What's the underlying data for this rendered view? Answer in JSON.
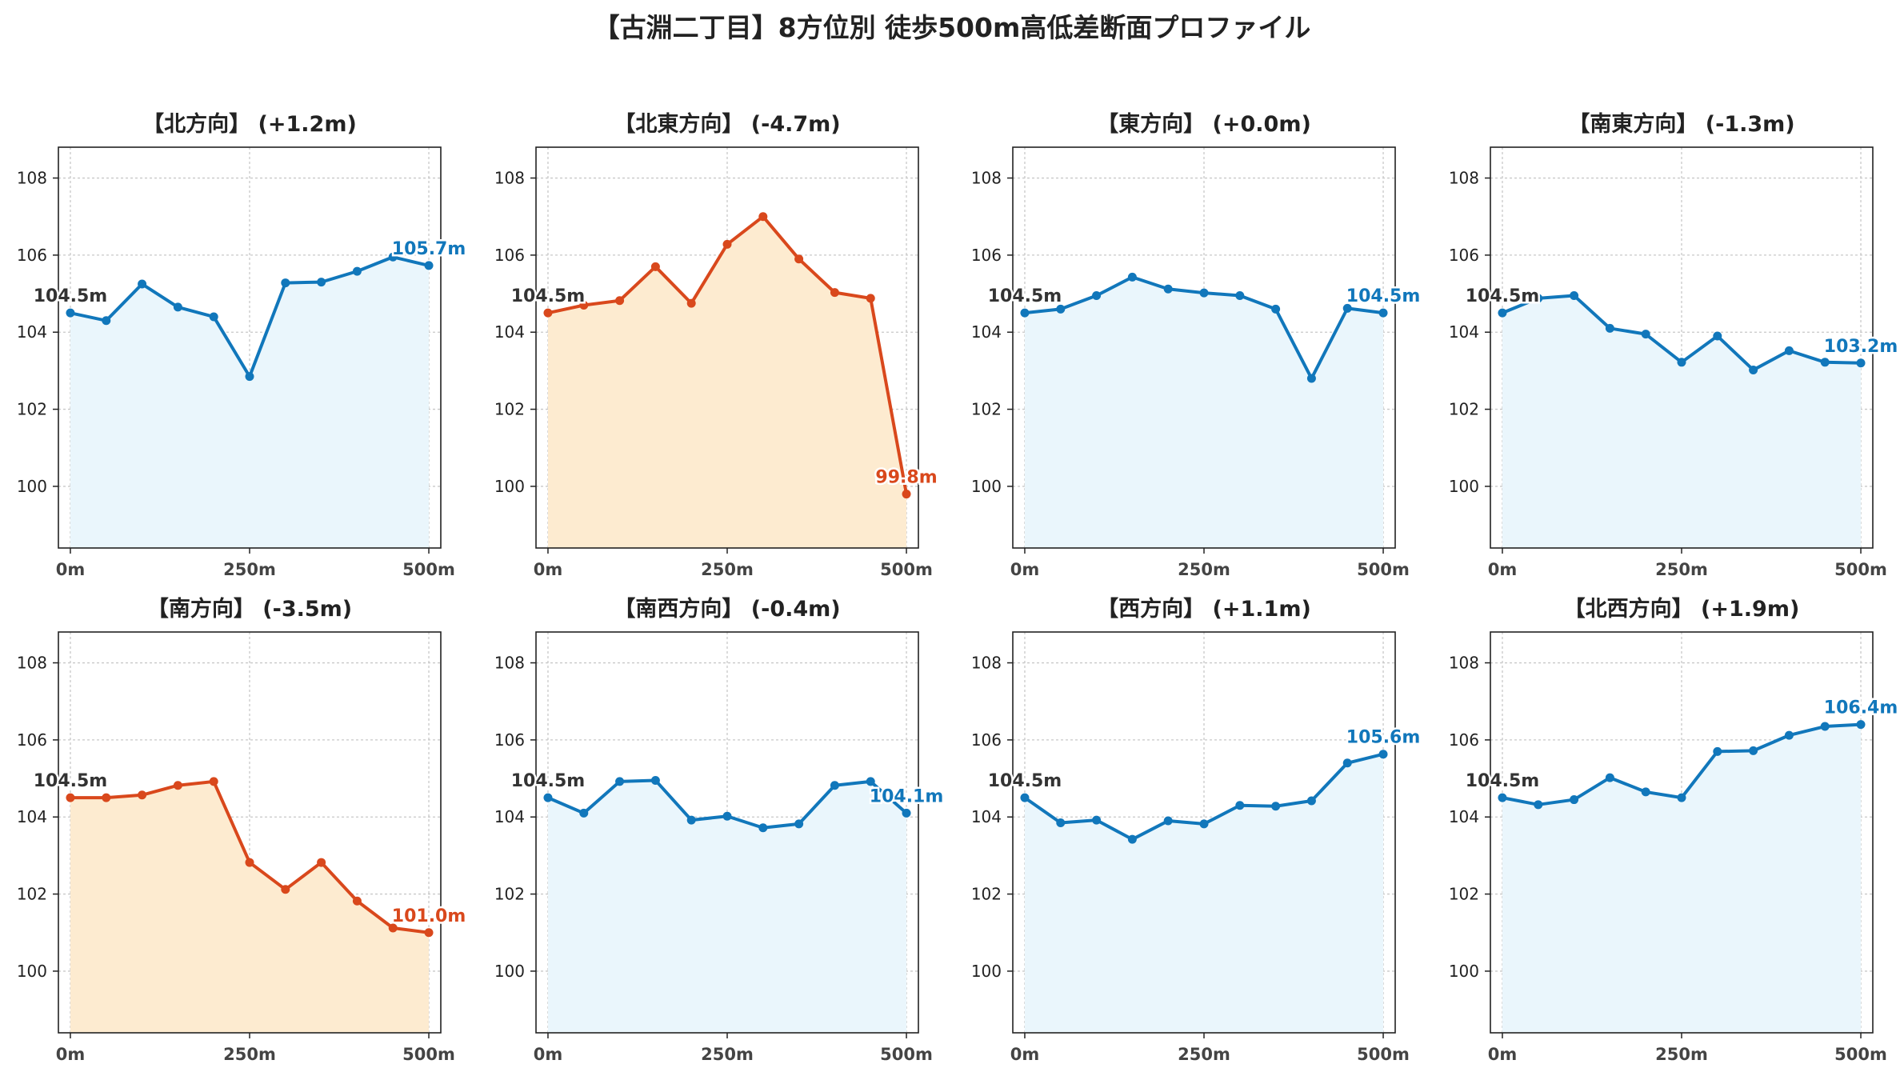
{
  "title": "【古淵二丁目】8方位別 徒歩500m高低差断面プロファイル",
  "colors": {
    "up_line": "#1177bb",
    "up_fill": "#eaf6fc",
    "down_line": "#d9481c",
    "down_fill": "#fdebd0",
    "start_label": "#333333"
  },
  "chart_data": [
    {
      "type": "area",
      "title": "【北方向】 (+1.2m)",
      "x": [
        0,
        50,
        100,
        150,
        200,
        250,
        300,
        350,
        400,
        450,
        500
      ],
      "values": [
        104.5,
        104.3,
        105.25,
        104.65,
        104.4,
        102.85,
        105.28,
        105.3,
        105.58,
        105.95,
        105.73
      ],
      "start_label": "104.5m",
      "end_label": "105.7m",
      "trend": "up",
      "xticks": [
        "0m",
        "250m",
        "500m"
      ],
      "yticks": [
        100,
        102,
        104,
        106,
        108
      ],
      "ylim": [
        98.4,
        108.8
      ],
      "grid": true
    },
    {
      "type": "area",
      "title": "【北東方向】 (-4.7m)",
      "x": [
        0,
        50,
        100,
        150,
        200,
        250,
        300,
        350,
        400,
        450,
        500
      ],
      "values": [
        104.5,
        104.7,
        104.82,
        105.7,
        104.75,
        106.28,
        107.0,
        105.9,
        105.03,
        104.88,
        99.8
      ],
      "start_label": "104.5m",
      "end_label": "99.8m",
      "trend": "down",
      "xticks": [
        "0m",
        "250m",
        "500m"
      ],
      "yticks": [
        100,
        102,
        104,
        106,
        108
      ],
      "ylim": [
        98.4,
        108.8
      ],
      "grid": true
    },
    {
      "type": "area",
      "title": "【東方向】 (+0.0m)",
      "x": [
        0,
        50,
        100,
        150,
        200,
        250,
        300,
        350,
        400,
        450,
        500
      ],
      "values": [
        104.5,
        104.6,
        104.95,
        105.43,
        105.12,
        105.02,
        104.95,
        104.6,
        102.8,
        104.62,
        104.5
      ],
      "start_label": "104.5m",
      "end_label": "104.5m",
      "trend": "up",
      "xticks": [
        "0m",
        "250m",
        "500m"
      ],
      "yticks": [
        100,
        102,
        104,
        106,
        108
      ],
      "ylim": [
        98.4,
        108.8
      ],
      "grid": true
    },
    {
      "type": "area",
      "title": "【南東方向】 (-1.3m)",
      "x": [
        0,
        50,
        100,
        150,
        200,
        250,
        300,
        350,
        400,
        450,
        500
      ],
      "values": [
        104.5,
        104.88,
        104.95,
        104.1,
        103.95,
        103.22,
        103.9,
        103.02,
        103.52,
        103.22,
        103.2
      ],
      "start_label": "104.5m",
      "end_label": "103.2m",
      "trend": "up",
      "xticks": [
        "0m",
        "250m",
        "500m"
      ],
      "yticks": [
        100,
        102,
        104,
        106,
        108
      ],
      "ylim": [
        98.4,
        108.8
      ],
      "grid": true
    },
    {
      "type": "area",
      "title": "【南方向】 (-3.5m)",
      "x": [
        0,
        50,
        100,
        150,
        200,
        250,
        300,
        350,
        400,
        450,
        500
      ],
      "values": [
        104.5,
        104.5,
        104.57,
        104.82,
        104.92,
        102.82,
        102.12,
        102.82,
        101.82,
        101.12,
        101.0
      ],
      "start_label": "104.5m",
      "end_label": "101.0m",
      "trend": "down",
      "xticks": [
        "0m",
        "250m",
        "500m"
      ],
      "yticks": [
        100,
        102,
        104,
        106,
        108
      ],
      "ylim": [
        98.4,
        108.8
      ],
      "grid": true
    },
    {
      "type": "area",
      "title": "【南西方向】 (-0.4m)",
      "x": [
        0,
        50,
        100,
        150,
        200,
        250,
        300,
        350,
        400,
        450,
        500
      ],
      "values": [
        104.5,
        104.1,
        104.92,
        104.95,
        103.92,
        104.02,
        103.72,
        103.82,
        104.82,
        104.92,
        104.1
      ],
      "start_label": "104.5m",
      "end_label": "104.1m",
      "trend": "up",
      "xticks": [
        "0m",
        "250m",
        "500m"
      ],
      "yticks": [
        100,
        102,
        104,
        106,
        108
      ],
      "ylim": [
        98.4,
        108.8
      ],
      "grid": true
    },
    {
      "type": "area",
      "title": "【西方向】 (+1.1m)",
      "x": [
        0,
        50,
        100,
        150,
        200,
        250,
        300,
        350,
        400,
        450,
        500
      ],
      "values": [
        104.5,
        103.85,
        103.92,
        103.42,
        103.9,
        103.82,
        104.3,
        104.28,
        104.42,
        105.4,
        105.63
      ],
      "start_label": "104.5m",
      "end_label": "105.6m",
      "trend": "up",
      "xticks": [
        "0m",
        "250m",
        "500m"
      ],
      "yticks": [
        100,
        102,
        104,
        106,
        108
      ],
      "ylim": [
        98.4,
        108.8
      ],
      "grid": true
    },
    {
      "type": "area",
      "title": "【北西方向】 (+1.9m)",
      "x": [
        0,
        50,
        100,
        150,
        200,
        250,
        300,
        350,
        400,
        450,
        500
      ],
      "values": [
        104.5,
        104.32,
        104.45,
        105.02,
        104.65,
        104.5,
        105.7,
        105.72,
        106.12,
        106.35,
        106.4
      ],
      "start_label": "104.5m",
      "end_label": "106.4m",
      "trend": "up",
      "xticks": [
        "0m",
        "250m",
        "500m"
      ],
      "yticks": [
        100,
        102,
        104,
        106,
        108
      ],
      "ylim": [
        98.4,
        108.8
      ],
      "grid": true
    }
  ]
}
